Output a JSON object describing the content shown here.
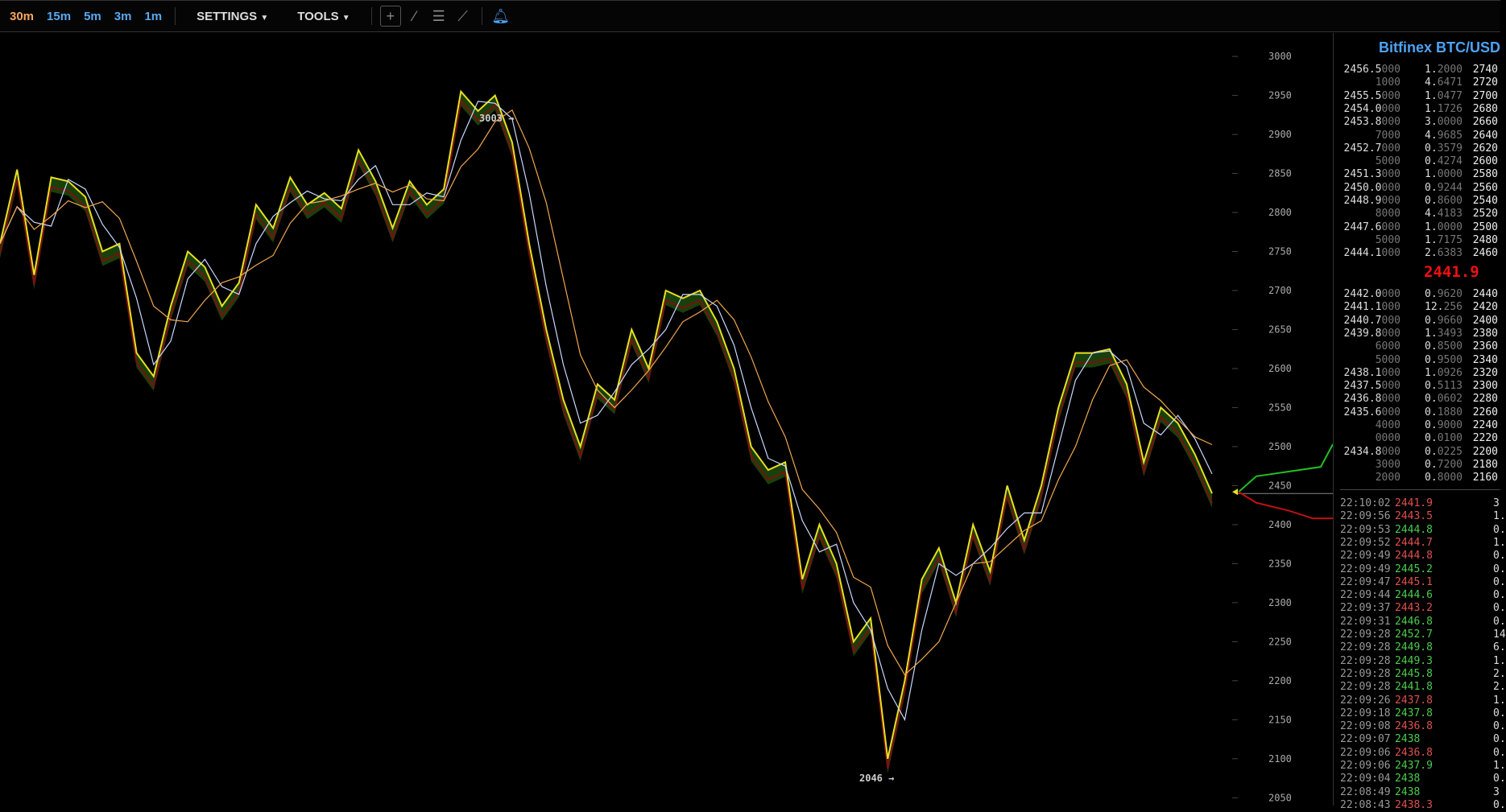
{
  "toolbar": {
    "timeframes": [
      "30m",
      "15m",
      "5m",
      "3m",
      "1m"
    ],
    "active_timeframe": "30m",
    "settings_label": "SETTINGS",
    "tools_label": "TOOLS"
  },
  "colors": {
    "accent": "#5aa7f0",
    "active": "#f5a55c",
    "up": "#4ccc4c",
    "down": "#e05050",
    "last_price": "#f01010"
  },
  "panel": {
    "title": "Bitfinex BTC/USD",
    "asks": [
      [
        "2456.5",
        "000",
        "1.",
        "2000",
        "2740"
      ],
      [
        "",
        "1000",
        "4.",
        "6471",
        "2720"
      ],
      [
        "2455.5",
        "000",
        "1.",
        "0477",
        "2700"
      ],
      [
        "2454.0",
        "000",
        "1.",
        "1726",
        "2680"
      ],
      [
        "2453.8",
        "000",
        "3.",
        "0000",
        "2660"
      ],
      [
        "",
        "7000",
        "4.",
        "9685",
        "2640"
      ],
      [
        "2452.7",
        "000",
        "0.",
        "3579",
        "2620"
      ],
      [
        "",
        "5000",
        "0.",
        "4274",
        "2600"
      ],
      [
        "2451.3",
        "000",
        "1.",
        "0000",
        "2580"
      ],
      [
        "2450.0",
        "000",
        "0.",
        "9244",
        "2560"
      ],
      [
        "2448.9",
        "000",
        "0.",
        "8600",
        "2540"
      ],
      [
        "",
        "8000",
        "4.",
        "4183",
        "2520"
      ],
      [
        "2447.6",
        "000",
        "1.",
        "0000",
        "2500"
      ],
      [
        "",
        "5000",
        "1.",
        "7175",
        "2480"
      ],
      [
        "2444.1",
        "000",
        "2.",
        "6383",
        "2460"
      ]
    ],
    "last_price": "2441.9",
    "bids": [
      [
        "2442.0",
        "000",
        "0.",
        "9620",
        "2440"
      ],
      [
        "2441.1",
        "000",
        "12.",
        "256",
        "2420"
      ],
      [
        "2440.7",
        "000",
        "0.",
        "9660",
        "2400"
      ],
      [
        "2439.8",
        "000",
        "1.",
        "3493",
        "2380"
      ],
      [
        "",
        "6000",
        "0.",
        "8500",
        "2360"
      ],
      [
        "",
        "5000",
        "0.",
        "9500",
        "2340"
      ],
      [
        "2438.1",
        "000",
        "1.",
        "0926",
        "2320"
      ],
      [
        "2437.5",
        "000",
        "0.",
        "5113",
        "2300"
      ],
      [
        "2436.8",
        "000",
        "0.",
        "0602",
        "2280"
      ],
      [
        "2435.6",
        "000",
        "0.",
        "1880",
        "2260"
      ],
      [
        "",
        "4000",
        "0.",
        "9000",
        "2240"
      ],
      [
        "",
        "0000",
        "0.",
        "0100",
        "2220"
      ],
      [
        "2434.8",
        "000",
        "0.",
        "0225",
        "2200"
      ],
      [
        "",
        "3000",
        "0.",
        "7200",
        "2180"
      ],
      [
        "",
        "2000",
        "0.",
        "8000",
        "2160"
      ]
    ],
    "trades": [
      [
        "22:10:02",
        "2441.9",
        "down",
        "3"
      ],
      [
        "22:09:56",
        "2443.5",
        "down",
        "1."
      ],
      [
        "22:09:53",
        "2444.8",
        "up",
        "0."
      ],
      [
        "22:09:52",
        "2444.7",
        "down",
        "1."
      ],
      [
        "22:09:49",
        "2444.8",
        "down",
        "0."
      ],
      [
        "22:09:49",
        "2445.2",
        "up",
        "0."
      ],
      [
        "22:09:47",
        "2445.1",
        "down",
        "0."
      ],
      [
        "22:09:44",
        "2444.6",
        "up",
        "0."
      ],
      [
        "22:09:37",
        "2443.2",
        "down",
        "0."
      ],
      [
        "22:09:31",
        "2446.8",
        "up",
        "0."
      ],
      [
        "22:09:28",
        "2452.7",
        "up",
        "14"
      ],
      [
        "22:09:28",
        "2449.8",
        "up",
        "6."
      ],
      [
        "22:09:28",
        "2449.3",
        "up",
        "1."
      ],
      [
        "22:09:28",
        "2445.8",
        "up",
        "2."
      ],
      [
        "22:09:28",
        "2441.8",
        "up",
        "2."
      ],
      [
        "22:09:26",
        "2437.8",
        "down",
        "1."
      ],
      [
        "22:09:18",
        "2437.8",
        "up",
        "0."
      ],
      [
        "22:09:08",
        "2436.8",
        "down",
        "0."
      ],
      [
        "22:09:07",
        "2438",
        "up",
        "0."
      ],
      [
        "22:09:06",
        "2436.8",
        "down",
        "0."
      ],
      [
        "22:09:06",
        "2437.9",
        "up",
        "1."
      ],
      [
        "22:09:04",
        "2438",
        "up",
        "0."
      ],
      [
        "22:08:49",
        "2438",
        "up",
        "3"
      ],
      [
        "22:08:43",
        "2438.3",
        "down",
        "0."
      ]
    ]
  },
  "chart_data": {
    "type": "line",
    "ylim": [
      2040,
      3030
    ],
    "yticks": [
      3000,
      2950,
      2900,
      2850,
      2800,
      2750,
      2700,
      2650,
      2600,
      2550,
      2500,
      2450,
      2400,
      2350,
      2300,
      2250,
      2200,
      2150,
      2100,
      2050
    ],
    "high_label": "3003 →",
    "low_label": "2046 →",
    "values": [
      2760,
      2855,
      2720,
      2845,
      2840,
      2820,
      2750,
      2760,
      2620,
      2590,
      2680,
      2750,
      2730,
      2680,
      2710,
      2810,
      2780,
      2845,
      2810,
      2825,
      2805,
      2880,
      2840,
      2780,
      2840,
      2810,
      2830,
      2955,
      2930,
      2950,
      2890,
      2760,
      2650,
      2560,
      2500,
      2580,
      2560,
      2650,
      2600,
      2700,
      2690,
      2700,
      2660,
      2600,
      2500,
      2470,
      2480,
      2330,
      2400,
      2350,
      2250,
      2280,
      2100,
      2200,
      2330,
      2370,
      2300,
      2400,
      2340,
      2450,
      2380,
      2450,
      2550,
      2620,
      2620,
      2625,
      2580,
      2480,
      2550,
      2530,
      2490,
      2440
    ]
  }
}
